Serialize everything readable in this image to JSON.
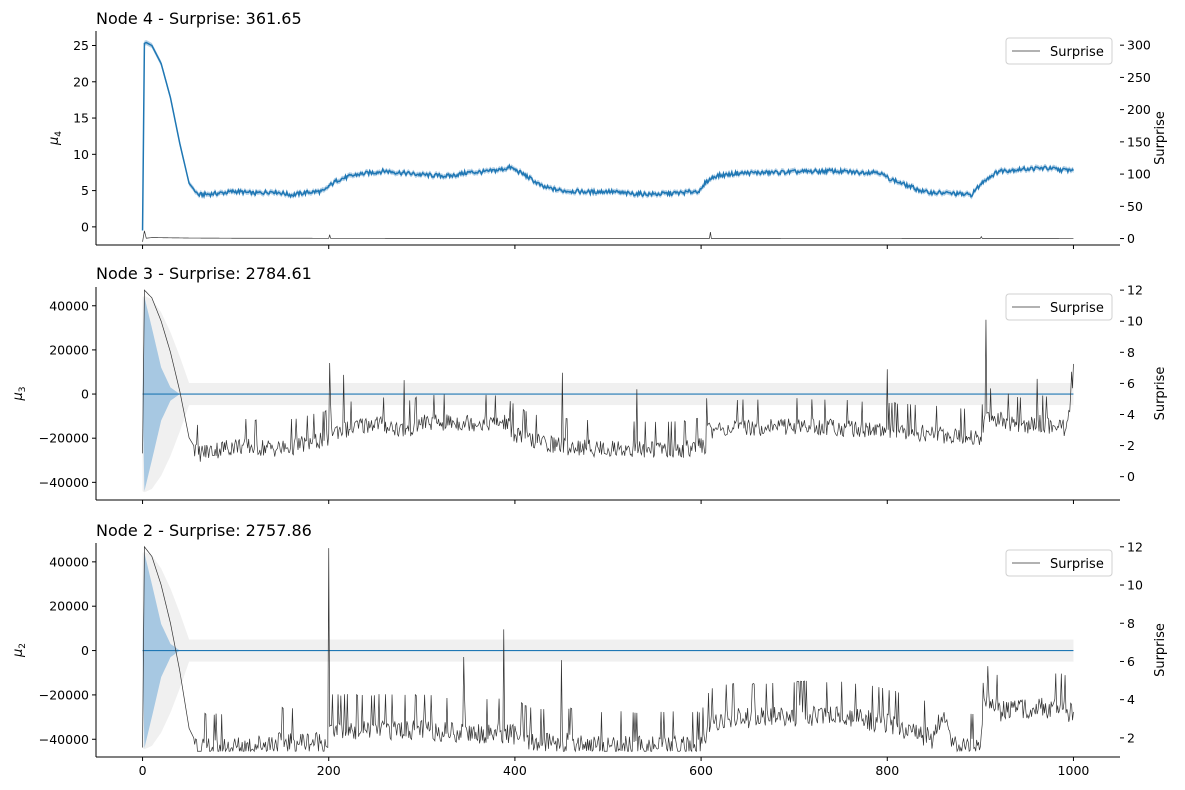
{
  "chart_data": [
    {
      "type": "line",
      "title": "Node 4 - Surprise: 361.65",
      "ylabel": "μ4",
      "ylabel_main": "μ",
      "ylabel_sub": "4",
      "y2label": "Surprise",
      "legend": [
        "Surprise"
      ],
      "legend_position": "top-right",
      "xlim": [
        -50,
        1050
      ],
      "ylim": [
        -2.5,
        27
      ],
      "y2lim": [
        -10,
        322
      ],
      "xticks": [
        "0",
        "200",
        "400",
        "600",
        "800",
        "1000"
      ],
      "yticks": [
        "0",
        "5",
        "10",
        "15",
        "20",
        "25"
      ],
      "y2ticks": [
        "0",
        "50",
        "100",
        "150",
        "200",
        "250",
        "300"
      ],
      "x_tick_labels_shown": false,
      "mean_color": "#1f77b4",
      "band_color": "#9fc3e0",
      "surprise_color": "#333333",
      "mean_series": {
        "name": "μ4",
        "x": [
          0,
          2,
          4,
          10,
          20,
          30,
          40,
          50,
          60,
          80,
          100,
          120,
          140,
          160,
          180,
          195,
          200,
          210,
          230,
          260,
          290,
          310,
          330,
          350,
          370,
          385,
          395,
          410,
          430,
          450,
          480,
          500,
          520,
          550,
          580,
          600,
          605,
          615,
          640,
          680,
          710,
          740,
          770,
          790,
          800,
          815,
          840,
          870,
          890,
          905,
          920,
          950,
          970,
          990,
          1000
        ],
        "values": [
          -0.5,
          25.3,
          25.4,
          25.0,
          22.5,
          17.8,
          11.5,
          6.0,
          4.4,
          4.6,
          4.9,
          4.6,
          4.9,
          4.4,
          4.8,
          4.9,
          5.6,
          6.5,
          7.2,
          7.7,
          7.3,
          7.1,
          7.0,
          7.5,
          7.6,
          7.9,
          8.2,
          7.2,
          5.5,
          5.0,
          4.8,
          4.9,
          4.6,
          4.5,
          4.7,
          5.0,
          6.2,
          7.0,
          7.4,
          7.5,
          7.6,
          7.7,
          7.5,
          7.6,
          6.8,
          6.0,
          4.8,
          4.6,
          4.4,
          6.5,
          7.7,
          8.0,
          8.1,
          7.8,
          7.9
        ]
      },
      "surprise_series": {
        "name": "Surprise",
        "x": [
          0,
          2,
          4,
          10,
          50,
          100,
          200,
          201,
          202,
          300,
          400,
          450,
          500,
          600,
          609,
          610,
          611,
          700,
          800,
          900,
          901,
          902,
          1000
        ],
        "values": [
          -5,
          12,
          0.5,
          1.5,
          0.8,
          0.5,
          0.4,
          6,
          0.4,
          0.3,
          0.3,
          0.3,
          0.3,
          0.3,
          0.3,
          10,
          0.3,
          0.2,
          0.2,
          0.3,
          3,
          0.3,
          0.2
        ]
      }
    },
    {
      "type": "line",
      "title": "Node 3 - Surprise: 2784.61",
      "ylabel": "μ3",
      "ylabel_main": "μ",
      "ylabel_sub": "3",
      "y2label": "Surprise",
      "legend": [
        "Surprise"
      ],
      "legend_position": "top-right",
      "xlim": [
        -50,
        1050
      ],
      "ylim": [
        -48000,
        48500
      ],
      "y2lim": [
        -1.5,
        12.2
      ],
      "xticks": [
        "0",
        "200",
        "400",
        "600",
        "800",
        "1000"
      ],
      "yticks": [
        "−40000",
        "−20000",
        "0",
        "20000",
        "40000"
      ],
      "y2ticks": [
        "0",
        "2",
        "4",
        "6",
        "8",
        "10",
        "12"
      ],
      "x_tick_labels_shown": false,
      "mean_color": "#1f77b4",
      "band_color": "#9fc3e0",
      "surprise_color": "#333333",
      "mean_value": 0,
      "inner_band_halfwidth": {
        "x": [
          0,
          2,
          10,
          20,
          30,
          40
        ],
        "values": [
          0,
          44000,
          30000,
          12000,
          3000,
          0
        ]
      },
      "outer_band_halfwidth": {
        "x": [
          0,
          2,
          10,
          20,
          30,
          40,
          50,
          1000
        ],
        "values": [
          44000,
          44500,
          43000,
          37000,
          28000,
          17000,
          5000,
          5000
        ]
      },
      "surprise_series": {
        "name": "Surprise",
        "x": [
          0,
          2,
          10,
          20,
          30,
          40,
          50,
          60,
          100,
          150,
          200,
          201,
          202,
          215,
          216,
          217,
          250,
          280,
          281,
          282,
          300,
          350,
          390,
          400,
          420,
          450,
          451,
          452,
          500,
          530,
          531,
          532,
          580,
          600,
          605,
          606,
          607,
          650,
          700,
          750,
          799,
          800,
          801,
          850,
          900,
          905,
          906,
          907,
          950,
          960,
          961,
          962,
          990,
          1000
        ],
        "values": [
          1.5,
          12,
          11.5,
          10,
          8,
          5.5,
          2.5,
          1.5,
          2,
          1.8,
          2.5,
          7.5,
          3,
          3,
          7,
          3,
          3.5,
          3,
          6,
          3,
          3.5,
          3.5,
          3.5,
          2.8,
          2.3,
          2,
          7,
          2,
          1.8,
          1.8,
          5.5,
          1.8,
          1.8,
          2,
          2,
          5.5,
          3,
          3.2,
          3.3,
          3.2,
          3,
          7,
          3,
          2.8,
          2.5,
          3.5,
          10.5,
          4,
          3.2,
          3.5,
          6.5,
          3.5,
          3.2,
          5.5
        ]
      }
    },
    {
      "type": "line",
      "title": "Node 2 - Surprise: 2757.86",
      "ylabel": "μ2",
      "ylabel_main": "μ",
      "ylabel_sub": "2",
      "y2label": "Surprise",
      "legend": [
        "Surprise"
      ],
      "legend_position": "top-right",
      "xlim": [
        -50,
        1050
      ],
      "ylim": [
        -48000,
        48500
      ],
      "y2lim": [
        1,
        12.2
      ],
      "xticks": [
        "0",
        "200",
        "400",
        "600",
        "800",
        "1000"
      ],
      "yticks": [
        "−40000",
        "−20000",
        "0",
        "20000",
        "40000"
      ],
      "y2ticks": [
        "2",
        "4",
        "6",
        "8",
        "10",
        "12"
      ],
      "x_tick_labels_shown": true,
      "mean_color": "#1f77b4",
      "band_color": "#9fc3e0",
      "surprise_color": "#333333",
      "mean_value": 0,
      "inner_band_halfwidth": {
        "x": [
          0,
          2,
          10,
          20,
          30,
          40
        ],
        "values": [
          0,
          44000,
          30000,
          12000,
          3000,
          0
        ]
      },
      "outer_band_halfwidth": {
        "x": [
          0,
          2,
          10,
          20,
          30,
          40,
          50,
          1000
        ],
        "values": [
          44000,
          44500,
          43000,
          37000,
          28000,
          17000,
          5000,
          5000
        ]
      },
      "surprise_series": {
        "name": "Surprise",
        "x": [
          0,
          2,
          10,
          20,
          30,
          40,
          50,
          60,
          100,
          150,
          199,
          200,
          201,
          250,
          300,
          344,
          345,
          346,
          387,
          388,
          389,
          400,
          420,
          449,
          450,
          451,
          500,
          600,
          610,
          620,
          700,
          750,
          800,
          850,
          860,
          870,
          900,
          905,
          920,
          950,
          990,
          1000
        ],
        "values": [
          1.5,
          12,
          11.5,
          10,
          8,
          5.5,
          2.5,
          1.5,
          1.5,
          1.8,
          1.8,
          11.5,
          2.5,
          2.5,
          2.5,
          2.3,
          6.8,
          2.3,
          2.3,
          7.2,
          2.3,
          2.2,
          1.8,
          1.8,
          6.2,
          1.8,
          1.6,
          1.6,
          2.8,
          3.0,
          3.2,
          3.2,
          2.8,
          2.0,
          3.5,
          1.6,
          1.4,
          4.2,
          3.4,
          3.6,
          3.6,
          3.2
        ]
      }
    }
  ]
}
